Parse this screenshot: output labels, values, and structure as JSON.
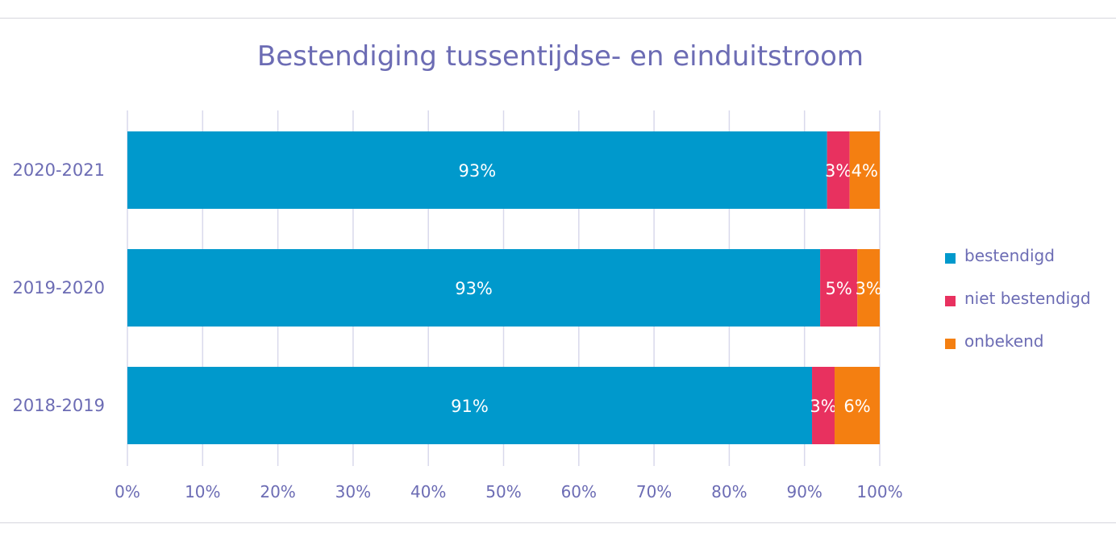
{
  "chart_data": {
    "type": "bar",
    "orientation": "horizontal",
    "stacked": "percent",
    "title": "Bestendiging tussentijdse- en einduitstroom",
    "categories": [
      "2020-2021",
      "2019-2020",
      "2018-2019"
    ],
    "series": [
      {
        "name": "bestendigd",
        "color": "#0099cc",
        "values": [
          93,
          93,
          91
        ],
        "labels": [
          "93%",
          "93%",
          "91%"
        ]
      },
      {
        "name": "niet bestendigd",
        "color": "#e8315f",
        "values": [
          3,
          5,
          3
        ],
        "labels": [
          "3%",
          "5%",
          "3%"
        ]
      },
      {
        "name": "onbekend",
        "color": "#f47f11",
        "values": [
          4,
          3,
          6
        ],
        "labels": [
          "4%",
          "3%",
          "6%"
        ]
      }
    ],
    "xlim": [
      0,
      100
    ],
    "x_ticks": [
      "0%",
      "10%",
      "20%",
      "30%",
      "40%",
      "50%",
      "60%",
      "70%",
      "80%",
      "90%",
      "100%"
    ],
    "grid": true,
    "legend_position": "right"
  }
}
